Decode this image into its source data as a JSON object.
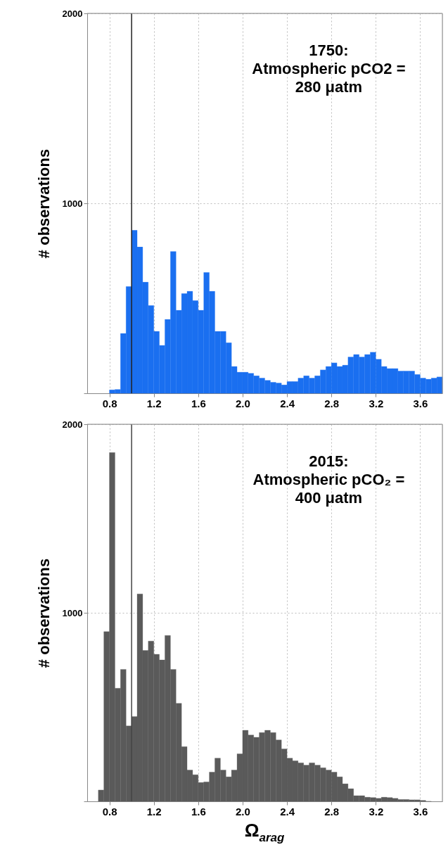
{
  "chart_data": [
    {
      "type": "histogram",
      "ylabel": "# observations",
      "annotations": [
        "1750:\nAtmospheric pCO2 =\n280 μatm"
      ],
      "bins": [
        0.8,
        0.85,
        0.9,
        0.95,
        1.0,
        1.05,
        1.1,
        1.15,
        1.2,
        1.25,
        1.3,
        1.35,
        1.4,
        1.45,
        1.5,
        1.55,
        1.6,
        1.65,
        1.7,
        1.75,
        1.8,
        1.85,
        1.9,
        1.95,
        2.0,
        2.05,
        2.1,
        2.15,
        2.2,
        2.25,
        2.3,
        2.35,
        2.4,
        2.45,
        2.5,
        2.55,
        2.6,
        2.65,
        2.7,
        2.75,
        2.8,
        2.85,
        2.9,
        2.95,
        3.0,
        3.05,
        3.1,
        3.15,
        3.2,
        3.25,
        3.3,
        3.35,
        3.4,
        3.45,
        3.5,
        3.55,
        3.6,
        3.65,
        3.7,
        3.75,
        3.8
      ],
      "series": [
        {
          "color": "#1a6ff0",
          "values": [
            18,
            20,
            315,
            562,
            858,
            770,
            585,
            462,
            326,
            252,
            389,
            746,
            437,
            525,
            537,
            488,
            437,
            636,
            537,
            326,
            326,
            266,
            141,
            111,
            111,
            105,
            92,
            80,
            68,
            58,
            54,
            44,
            62,
            62,
            80,
            92,
            80,
            92,
            123,
            141,
            160,
            141,
            148,
            191,
            204,
            191,
            204,
            216,
            179,
            141,
            130,
            130,
            117,
            117,
            117,
            99,
            80,
            74,
            80,
            86
          ]
        }
      ],
      "xlim": [
        0.6,
        3.8
      ],
      "xticks": [
        0.8,
        1.2,
        1.6,
        {
          "value": 2,
          "label": "2.0"
        },
        2.4,
        2.8,
        3.2,
        3.6
      ],
      "ylim": [
        0,
        2000
      ],
      "yticks": [
        {
          "value": 0,
          "label": null
        },
        1000,
        2000
      ],
      "grid": true,
      "ref_lines": [
        {
          "axis": "x",
          "value": 1.0,
          "color": "#222222"
        }
      ]
    },
    {
      "type": "histogram",
      "ylabel": "# observations",
      "xlabel": "Ω$_{arag}$",
      "annotations": [
        "2015:\nAtmospheric pCO₂ =\n400 μatm"
      ],
      "bins": [
        0.7,
        0.75,
        0.8,
        0.85,
        0.9,
        0.95,
        1.0,
        1.05,
        1.1,
        1.15,
        1.2,
        1.25,
        1.3,
        1.35,
        1.4,
        1.45,
        1.5,
        1.55,
        1.6,
        1.65,
        1.7,
        1.75,
        1.8,
        1.85,
        1.9,
        1.95,
        2.0,
        2.05,
        2.1,
        2.15,
        2.2,
        2.25,
        2.3,
        2.35,
        2.4,
        2.45,
        2.5,
        2.55,
        2.6,
        2.65,
        2.7,
        2.75,
        2.8,
        2.85,
        2.9,
        2.95,
        3.0,
        3.05,
        3.1,
        3.15,
        3.2,
        3.25,
        3.3,
        3.35,
        3.4,
        3.45,
        3.5,
        3.55,
        3.6,
        3.65,
        3.7,
        3.75,
        3.8
      ],
      "series": [
        {
          "color": "#5a5a5a",
          "values": [
            60,
            900,
            1850,
            600,
            700,
            400,
            450,
            1100,
            800,
            850,
            780,
            750,
            880,
            700,
            520,
            290,
            166,
            141,
            100,
            103,
            155,
            229,
            166,
            130,
            166,
            252,
            377,
            352,
            340,
            365,
            377,
            365,
            326,
            278,
            229,
            215,
            204,
            192,
            204,
            192,
            178,
            166,
            155,
            130,
            93,
            67,
            30,
            30,
            22,
            20,
            16,
            22,
            20,
            16,
            10,
            10,
            8,
            8,
            5,
            0,
            null,
            null
          ]
        }
      ],
      "xlim": [
        0.6,
        3.8
      ],
      "xticks": [
        0.8,
        1.2,
        1.6,
        {
          "value": 2,
          "label": "2.0"
        },
        2.4,
        2.8,
        3.2,
        3.6
      ],
      "ylim": [
        0,
        2000
      ],
      "yticks": [
        {
          "value": 0,
          "label": null
        },
        1000,
        2000
      ],
      "grid": true,
      "ref_lines": [
        {
          "axis": "x",
          "value": 1.0,
          "color": "#444444"
        }
      ]
    }
  ]
}
